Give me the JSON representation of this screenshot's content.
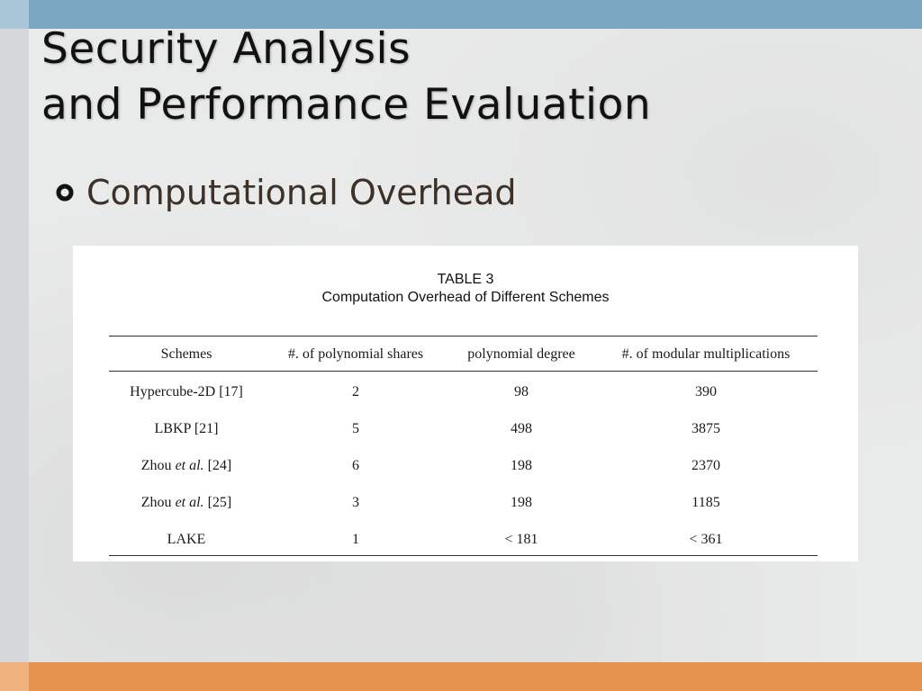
{
  "slide": {
    "title_line1": "Security Analysis",
    "title_line2": "and Performance Evaluation",
    "bullet": "Computational Overhead",
    "bullet_icon": "hollow-circle-bullet-icon",
    "colors": {
      "top_band": "#7aa6c2",
      "bottom_band": "#e5934f",
      "background": "#e9eaea",
      "bullet_text": "#3d3027"
    }
  },
  "table": {
    "number": "TABLE 3",
    "caption": "Computation Overhead of Different Schemes",
    "headers": [
      "Schemes",
      "#. of polynomial shares",
      "polynomial degree",
      "#. of modular multiplications"
    ],
    "rows": [
      {
        "scheme": "Hypercube-2D [17]",
        "scheme_prefix": "",
        "scheme_italic": "",
        "scheme_suffix": "",
        "shares": "2",
        "degree": "98",
        "mults": "390"
      },
      {
        "scheme": "LBKP [21]",
        "scheme_prefix": "",
        "scheme_italic": "",
        "scheme_suffix": "",
        "shares": "5",
        "degree": "498",
        "mults": "3875"
      },
      {
        "scheme": "",
        "scheme_prefix": "Zhou ",
        "scheme_italic": "et al.",
        "scheme_suffix": " [24]",
        "shares": "6",
        "degree": "198",
        "mults": "2370"
      },
      {
        "scheme": "",
        "scheme_prefix": "Zhou ",
        "scheme_italic": "et al.",
        "scheme_suffix": " [25]",
        "shares": "3",
        "degree": "198",
        "mults": "1185"
      },
      {
        "scheme": "LAKE",
        "scheme_prefix": "",
        "scheme_italic": "",
        "scheme_suffix": "",
        "shares": "1",
        "degree": "< 181",
        "mults": "< 361"
      }
    ]
  }
}
